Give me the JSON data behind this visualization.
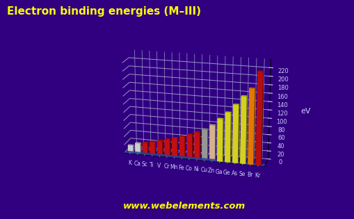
{
  "title": "Electron binding energies (M–III)",
  "ylabel": "eV",
  "watermark": "www.webelements.com",
  "elements": [
    "K",
    "Ca",
    "Sc",
    "Ti",
    "V",
    "Cr",
    "Mn",
    "Fe",
    "Co",
    "Ni",
    "Cu",
    "Zn",
    "Ga",
    "Ge",
    "As",
    "Se",
    "Br",
    "Kr"
  ],
  "values": [
    18.3,
    25.4,
    28.3,
    32.6,
    37.2,
    42.2,
    47.2,
    52.7,
    58.9,
    66.2,
    75.1,
    86.6,
    103.5,
    120.4,
    140.5,
    161.9,
    181.5,
    222.2
  ],
  "bar_colors": [
    "#e8e8e8",
    "#e8e8e8",
    "#dd1111",
    "#dd1111",
    "#dd1111",
    "#dd1111",
    "#dd1111",
    "#dd1111",
    "#dd1111",
    "#dd1111",
    "#aaaaaa",
    "#f0c8a0",
    "#eeee22",
    "#eeee22",
    "#eeee22",
    "#eeee22",
    "#ff8800",
    "#cc1111"
  ],
  "bg_color": "#300080",
  "title_color": "#ffff00",
  "grid_color": "#9999cc",
  "text_color": "#ccccff",
  "watermark_color": "#ffff00",
  "axis_label_color": "#ccccff",
  "base_color": "#3355cc",
  "ylim_max": 240,
  "yticks": [
    0,
    20,
    40,
    60,
    80,
    100,
    120,
    140,
    160,
    180,
    200,
    220
  ],
  "elev": 18,
  "azim": -75,
  "title_fontsize": 11,
  "tick_fontsize": 6,
  "elem_fontsize": 5.5,
  "ylabel_fontsize": 8
}
